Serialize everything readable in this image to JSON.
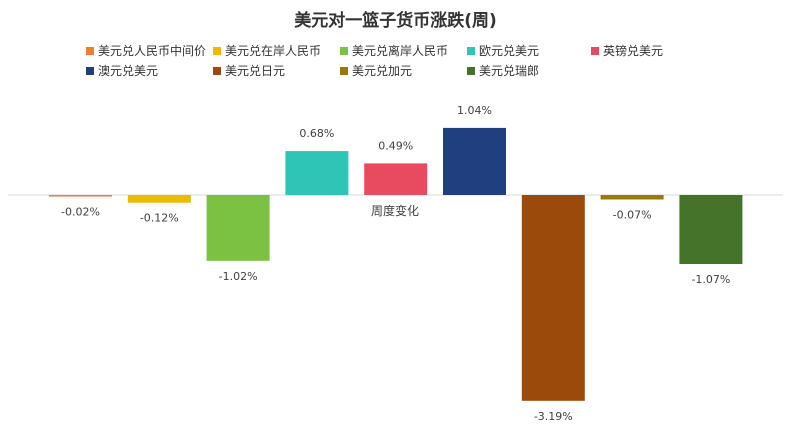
{
  "chart_data": {
    "type": "bar",
    "title": "美元对一篮子货币涨跌(周)",
    "xlabel": "周度变化",
    "ylabel": "",
    "ylim": [
      -3.4,
      1.3
    ],
    "categories": [
      "周度变化"
    ],
    "series": [
      {
        "name": "美元兑人民币中间价",
        "values": [
          -0.02
        ],
        "label": "-0.02%",
        "color": "#ED7D31"
      },
      {
        "name": "美元兑在岸人民币",
        "values": [
          -0.12
        ],
        "label": "-0.12%",
        "color": "#F0B800"
      },
      {
        "name": "美元兑离岸人民币",
        "values": [
          -1.02
        ],
        "label": "-1.02%",
        "color": "#7BC142"
      },
      {
        "name": "欧元兑美元",
        "values": [
          0.68
        ],
        "label": "0.68%",
        "color": "#2EC4B6"
      },
      {
        "name": "英镑兑美元",
        "values": [
          0.49
        ],
        "label": "0.49%",
        "color": "#E84A5F"
      },
      {
        "name": "澳元兑美元",
        "values": [
          1.04
        ],
        "label": "1.04%",
        "color": "#1F3F7F"
      },
      {
        "name": "美元兑日元",
        "values": [
          -3.19
        ],
        "label": "-3.19%",
        "color": "#9C4A0C"
      },
      {
        "name": "美元兑加元",
        "values": [
          -0.07
        ],
        "label": "-0.07%",
        "color": "#9C7A00"
      },
      {
        "name": "美元兑瑞郎",
        "values": [
          -1.07
        ],
        "label": "-1.07%",
        "color": "#46732A"
      }
    ],
    "legend_position": "top",
    "grid": false
  }
}
